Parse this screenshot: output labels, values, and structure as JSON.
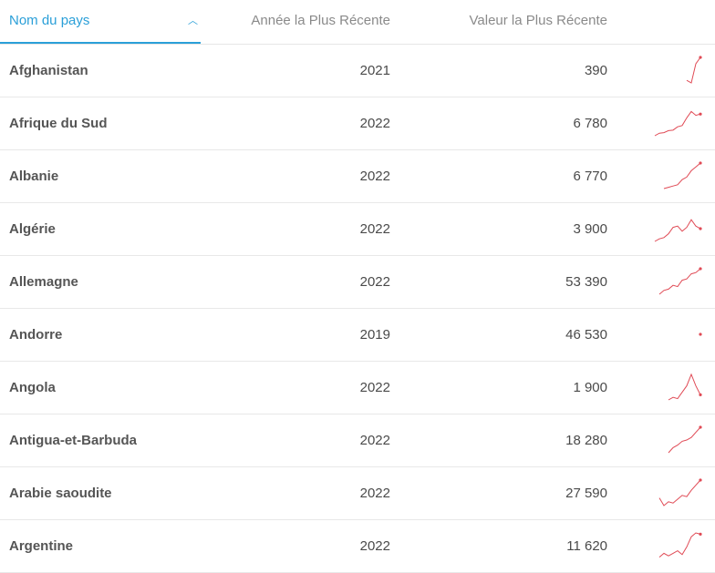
{
  "columns": {
    "name": "Nom du pays",
    "year": "Année la Plus Récente",
    "value": "Valeur la Plus Récente"
  },
  "colors": {
    "accent": "#2a9fd8",
    "sparkline": "#e04a55"
  },
  "rows": [
    {
      "name": "Afghanistan",
      "year": "2021",
      "value": "390",
      "trend": [
        0.1,
        0.0,
        0.75,
        1.0
      ]
    },
    {
      "name": "Afrique du Sud",
      "year": "2022",
      "value": "6 780",
      "trend": [
        0.0,
        0.1,
        0.12,
        0.2,
        0.22,
        0.35,
        0.4,
        0.7,
        0.95,
        0.8,
        0.85
      ]
    },
    {
      "name": "Albanie",
      "year": "2022",
      "value": "6 770",
      "trend": [
        0.0,
        0.05,
        0.1,
        0.15,
        0.35,
        0.45,
        0.7,
        0.85,
        1.0
      ]
    },
    {
      "name": "Algérie",
      "year": "2022",
      "value": "3 900",
      "trend": [
        0.0,
        0.1,
        0.15,
        0.3,
        0.55,
        0.6,
        0.4,
        0.55,
        0.85,
        0.6,
        0.5
      ]
    },
    {
      "name": "Allemagne",
      "year": "2022",
      "value": "53 390",
      "trend": [
        0.0,
        0.15,
        0.2,
        0.35,
        0.3,
        0.55,
        0.6,
        0.8,
        0.85,
        1.0
      ]
    },
    {
      "name": "Andorre",
      "year": "2019",
      "value": "46 530",
      "trend": [
        0.5
      ]
    },
    {
      "name": "Angola",
      "year": "2022",
      "value": "1 900",
      "trend": [
        0.0,
        0.1,
        0.05,
        0.3,
        0.55,
        1.0,
        0.55,
        0.2
      ]
    },
    {
      "name": "Antigua-et-Barbuda",
      "year": "2022",
      "value": "18 280",
      "trend": [
        0.0,
        0.2,
        0.3,
        0.45,
        0.5,
        0.6,
        0.8,
        1.0
      ]
    },
    {
      "name": "Arabie saoudite",
      "year": "2022",
      "value": "27 590",
      "trend": [
        0.3,
        0.0,
        0.15,
        0.1,
        0.25,
        0.4,
        0.35,
        0.6,
        0.8,
        1.0
      ]
    },
    {
      "name": "Argentine",
      "year": "2022",
      "value": "11 620",
      "trend": [
        0.05,
        0.2,
        0.1,
        0.2,
        0.3,
        0.15,
        0.45,
        0.85,
        1.0,
        0.95
      ]
    }
  ]
}
